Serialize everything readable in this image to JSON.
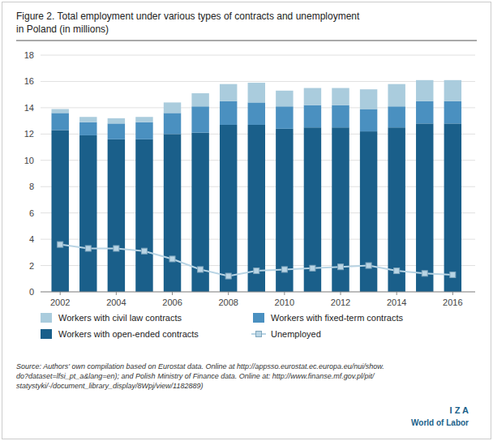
{
  "chart_data": {
    "type": "bar",
    "title": "Figure 2. Total employment under various types of contracts and unemployment\nin Poland (in millions)",
    "x": [
      2002,
      2003,
      2004,
      2005,
      2006,
      2007,
      2008,
      2009,
      2010,
      2011,
      2012,
      2013,
      2014,
      2015,
      2016
    ],
    "series": [
      {
        "name": "Workers with open-ended contracts",
        "type": "bar",
        "color": "#1a5f8a",
        "values": [
          12.3,
          11.9,
          11.6,
          11.6,
          12.0,
          12.1,
          12.7,
          12.7,
          12.4,
          12.5,
          12.5,
          12.2,
          12.5,
          12.8,
          12.8
        ]
      },
      {
        "name": "Workers with fixed-term contracts",
        "type": "bar",
        "color": "#4a90c0",
        "values": [
          1.3,
          1.0,
          1.2,
          1.3,
          1.6,
          2.0,
          1.8,
          1.7,
          1.7,
          1.7,
          1.7,
          1.7,
          1.6,
          1.7,
          1.7
        ]
      },
      {
        "name": "Workers with civil law contracts",
        "type": "bar",
        "color": "#aaccdd",
        "values": [
          0.3,
          0.4,
          0.4,
          0.4,
          0.8,
          1.0,
          1.3,
          1.5,
          1.2,
          1.3,
          1.3,
          1.5,
          1.7,
          1.6,
          1.6
        ]
      },
      {
        "name": "Unemployed",
        "type": "line",
        "marker": "square",
        "color": "#b8d4e4",
        "values": [
          3.6,
          3.3,
          3.3,
          3.1,
          2.5,
          1.7,
          1.2,
          1.6,
          1.7,
          1.8,
          1.9,
          2.0,
          1.6,
          1.4,
          1.3
        ]
      }
    ],
    "stacked": true,
    "xlim": [
      2001.3,
      2016.8
    ],
    "xticks": [
      2002,
      2004,
      2006,
      2008,
      2010,
      2012,
      2014,
      2016
    ],
    "ylim": [
      0,
      18
    ],
    "yticks": [
      0,
      2,
      4,
      6,
      8,
      10,
      12,
      14,
      16,
      18
    ],
    "grid": true,
    "legend": "bottom",
    "annotations": [
      "Source: Authors' own compilation based on Eurostat data. Online at http://appsso.eurostat.ec.europa.eu/nui/show.\ndo?dataset=lfsi_pt_a&lang=en); and Polish Ministry of Finance data. Online at: http://www.finanse.mf.gov.pl/pit/\nstatystyki/-/document_library_display/8Wpj/view/1182889)",
      "I Z A",
      "World of Labor"
    ]
  }
}
